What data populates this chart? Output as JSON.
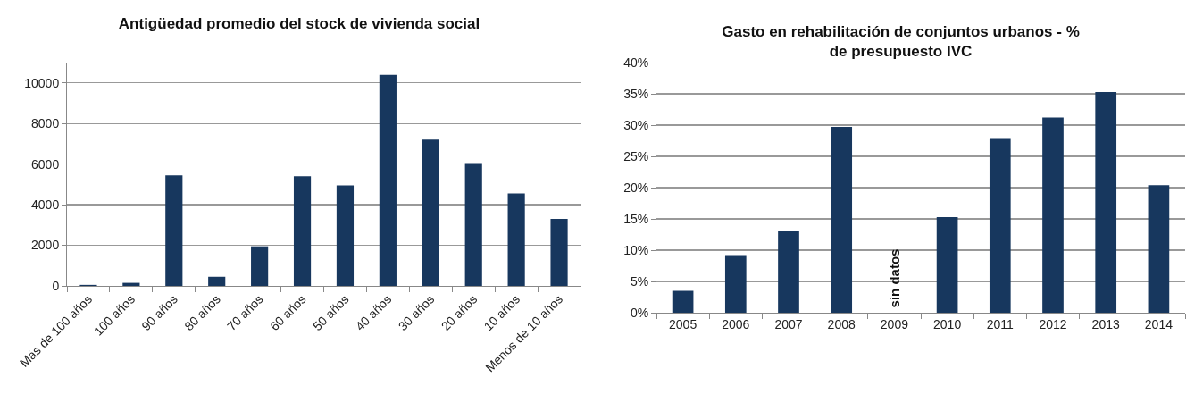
{
  "chart_data": [
    {
      "type": "bar",
      "title": "Antigüedad promedio del stock de vivienda social",
      "categories": [
        "Más de 100 años",
        "100 años",
        "90 años",
        "80 años",
        "70 años",
        "60 años",
        "50 años",
        "40 años",
        "30 años",
        "20 años",
        "10 años",
        "Menos de 10 años"
      ],
      "series": [
        {
          "color": "#17375e",
          "values": [
            50,
            150,
            5450,
            450,
            1950,
            5400,
            4950,
            10400,
            7200,
            6050,
            4550,
            3300
          ]
        }
      ],
      "ylim": [
        0,
        11000
      ],
      "yticks": [
        0,
        2000,
        4000,
        6000,
        8000,
        10000
      ],
      "grid": "y"
    },
    {
      "type": "bar",
      "title": "Gasto en rehabilitación de conjuntos urbanos - %\nde presupuesto IVC",
      "categories": [
        "2005",
        "2006",
        "2007",
        "2008",
        "2009",
        "2010",
        "2011",
        "2012",
        "2013",
        "2014"
      ],
      "series": [
        {
          "color": "#17375e",
          "values": [
            3.5,
            9.2,
            13.1,
            29.7,
            null,
            15.3,
            27.8,
            31.2,
            35.3,
            20.4
          ]
        }
      ],
      "ylim": [
        0,
        40
      ],
      "yticks": [
        {
          "value": 0,
          "label": "0%"
        },
        {
          "value": 5,
          "label": "5%"
        },
        {
          "value": 10,
          "label": "10%"
        },
        {
          "value": 15,
          "label": "15%"
        },
        {
          "value": 20,
          "label": "20%"
        },
        {
          "value": 25,
          "label": "25%"
        },
        {
          "value": 30,
          "label": "30%"
        },
        {
          "value": 35,
          "label": "35%"
        },
        {
          "value": 40,
          "label": "40%"
        }
      ],
      "grid": "y",
      "annotations": [
        "sin datos"
      ]
    }
  ]
}
